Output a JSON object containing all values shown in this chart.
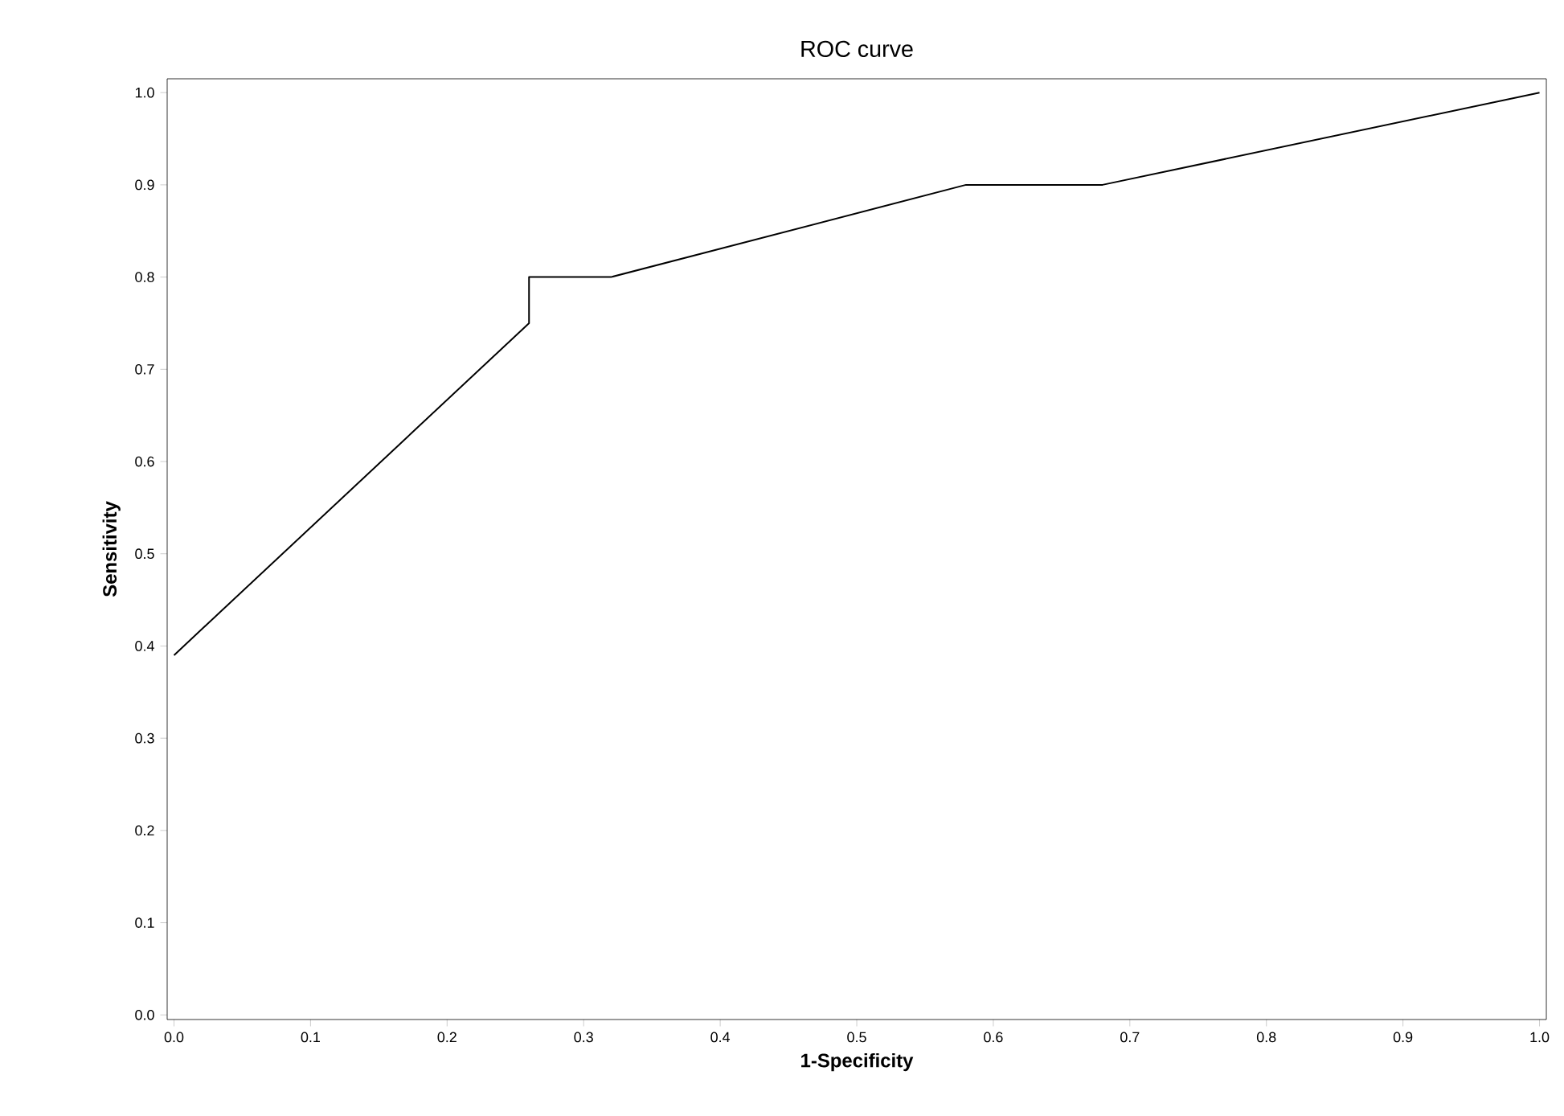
{
  "chart_data": {
    "type": "line",
    "title": "ROC curve",
    "xlabel": "1-Specificity",
    "ylabel": "Sensitivity",
    "x": [
      0,
      0.26,
      0.26,
      0.32,
      0.58,
      0.68,
      1.0
    ],
    "series": [
      {
        "color": "#000000",
        "values": [
          0.39,
          0.75,
          0.8,
          0.8,
          0.9,
          0.9,
          1.0
        ]
      }
    ],
    "xlim": [
      -0.005,
      1.005
    ],
    "ylim": [
      -0.005,
      1.015
    ],
    "xticks": [
      {
        "value": 0,
        "label": "0.0"
      },
      0.1,
      0.2,
      0.3,
      0.4,
      0.5,
      0.6,
      0.7,
      0.8,
      0.9,
      {
        "value": 1,
        "label": "1.0"
      }
    ],
    "yticks": [
      {
        "value": 0,
        "label": "0.0"
      },
      0.1,
      0.2,
      0.3,
      0.4,
      0.5,
      0.6,
      0.7,
      0.8,
      0.9,
      {
        "value": 1,
        "label": "1.0"
      }
    ],
    "grid": false,
    "marker": "none",
    "line_style": "solid"
  }
}
